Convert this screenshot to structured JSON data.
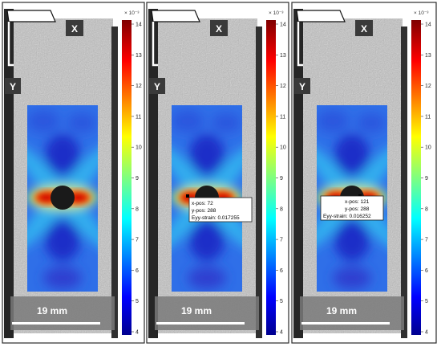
{
  "panels": [
    {
      "id": "panel-1",
      "label_x": "X",
      "label_y": "Y",
      "scale_label": "19 mm",
      "colorbar_exponent": "× 10⁻³",
      "colorbar_ticks": [
        "14",
        "13",
        "12",
        "11",
        "10",
        "9",
        "8",
        "7",
        "6",
        "5",
        "4"
      ],
      "tooltip": null
    },
    {
      "id": "panel-2",
      "label_x": "X",
      "label_y": "Y",
      "scale_label": "19 mm",
      "colorbar_exponent": "× 10⁻³",
      "colorbar_ticks": [
        "14",
        "13",
        "12",
        "11",
        "10",
        "9",
        "8",
        "7",
        "6",
        "5",
        "4"
      ],
      "tooltip": {
        "line1": "x-pos: 72",
        "line2": "y-pos: 288",
        "line3": "Eyy-strain: 0.017255"
      }
    },
    {
      "id": "panel-3",
      "label_x": "X",
      "label_y": "Y",
      "scale_label": "19 mm",
      "colorbar_exponent": "× 10⁻³",
      "colorbar_ticks": [
        "14",
        "13",
        "12",
        "11",
        "10",
        "9",
        "8",
        "7",
        "6",
        "5",
        "4"
      ],
      "tooltip": {
        "line1": "x-pos: 121",
        "line2": "y-pos: 288",
        "line3": "Eyy-strain: 0.016252"
      }
    }
  ],
  "colors": {
    "panel_border": "#2b2b2b",
    "speckle_bg": "#bdbdbd",
    "scale_bar": "#ffffff"
  }
}
